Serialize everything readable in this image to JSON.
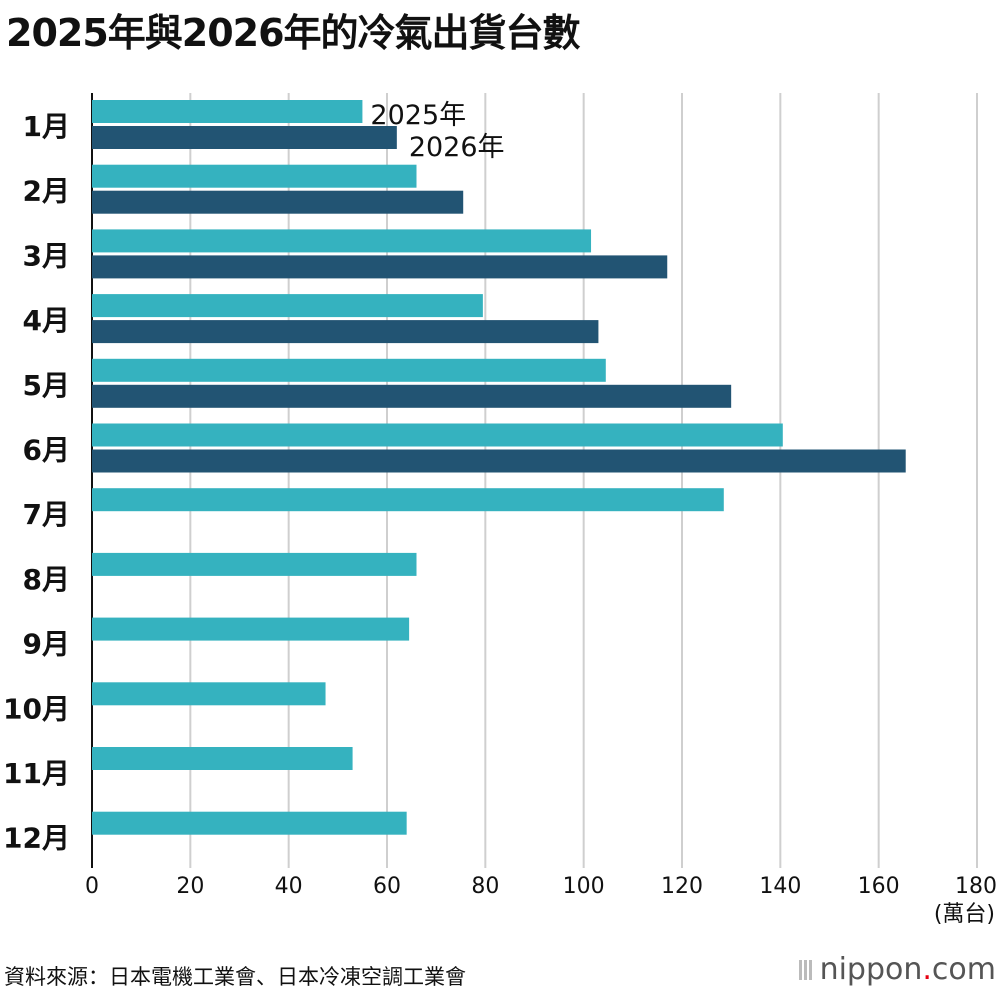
{
  "title": "2025年與2026年的冷氣出貨台數",
  "source": "資料來源：日本電機工業會、日本冷凍空調工業會",
  "logo": {
    "name": "nippon",
    "dot": ".",
    "suffix": "com"
  },
  "chart_data": {
    "type": "bar",
    "orientation": "horizontal",
    "categories": [
      "1月",
      "2月",
      "3月",
      "4月",
      "5月",
      "6月",
      "7月",
      "8月",
      "9月",
      "10月",
      "11月",
      "12月"
    ],
    "series": [
      {
        "name": "2025年",
        "color": "#35b2bf",
        "values": [
          55,
          66,
          101.5,
          79.5,
          104.5,
          140.5,
          128.5,
          66,
          64.5,
          47.5,
          53,
          64
        ]
      },
      {
        "name": "2026年",
        "color": "#225473",
        "values": [
          62,
          75.5,
          117,
          103,
          130,
          165.5,
          null,
          null,
          null,
          null,
          null,
          null
        ]
      }
    ],
    "xlim": [
      0,
      180
    ],
    "xticks": [
      "0",
      "20",
      "40",
      "60",
      "80",
      "100",
      "120",
      "140",
      "160",
      "180"
    ],
    "xunit": "(萬台)",
    "grid": true,
    "legend": "inline-at-first-bars"
  }
}
